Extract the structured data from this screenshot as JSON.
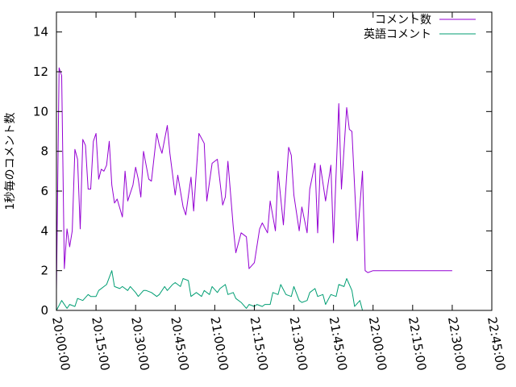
{
  "chart_data": {
    "type": "line",
    "ylabel": "1秒毎のコメント数",
    "xlabel": "",
    "title": "",
    "ylim": [
      0,
      15
    ],
    "y_ticks": [
      "0",
      "2",
      "4",
      "6",
      "8",
      "10",
      "12",
      "14"
    ],
    "y_tick_values": [
      0,
      2,
      4,
      6,
      8,
      10,
      12,
      14
    ],
    "xlim": [
      "20:00:00",
      "22:45:00"
    ],
    "x_ticks": [
      "20:00:00",
      "20:15:00",
      "20:30:00",
      "20:45:00",
      "21:00:00",
      "21:15:00",
      "21:30:00",
      "21:45:00",
      "22:00:00",
      "22:15:00",
      "22:30:00",
      "22:45:00"
    ],
    "grid": false,
    "legend_position": "top-right",
    "series": [
      {
        "name": "コメント数",
        "color": "#9400d3",
        "x": [
          "20:00:00",
          "20:01:00",
          "20:02:00",
          "20:03:00",
          "20:04:00",
          "20:05:00",
          "20:06:00",
          "20:07:00",
          "20:08:00",
          "20:09:00",
          "20:10:00",
          "20:11:00",
          "20:12:00",
          "20:13:00",
          "20:14:00",
          "20:15:00",
          "20:16:00",
          "20:17:00",
          "20:18:00",
          "20:19:00",
          "20:20:00",
          "20:21:00",
          "20:22:00",
          "20:23:00",
          "20:25:00",
          "20:26:00",
          "20:27:00",
          "20:29:00",
          "20:30:00",
          "20:31:00",
          "20:32:00",
          "20:33:00",
          "20:35:00",
          "20:36:00",
          "20:38:00",
          "20:39:00",
          "20:40:00",
          "20:42:00",
          "20:43:00",
          "20:45:00",
          "20:46:00",
          "20:48:00",
          "20:49:00",
          "20:51:00",
          "20:52:00",
          "20:54:00",
          "20:56:00",
          "20:57:00",
          "20:59:00",
          "21:01:00",
          "21:03:00",
          "21:04:00",
          "21:05:00",
          "21:07:00",
          "21:08:00",
          "21:10:00",
          "21:12:00",
          "21:13:00",
          "21:15:00",
          "21:17:00",
          "21:18:00",
          "21:20:00",
          "21:21:00",
          "21:23:00",
          "21:24:00",
          "21:26:00",
          "21:28:00",
          "21:29:00",
          "21:30:00",
          "21:32:00",
          "21:33:00",
          "21:35:00",
          "21:36:00",
          "21:38:00",
          "21:39:00",
          "21:40:00",
          "21:42:00",
          "21:44:00",
          "21:45:00",
          "21:47:00",
          "21:48:00",
          "21:50:00",
          "21:51:00",
          "21:52:00",
          "21:54:00",
          "21:56:00",
          "21:57:00",
          "21:58:00",
          "22:00:00",
          "22:01:00",
          "22:03:00",
          "22:04:00",
          "22:06:00",
          "22:07:00",
          "22:09:00",
          "22:10:00",
          "22:12:00",
          "22:13:00",
          "22:15:00",
          "22:16:00",
          "22:18:00",
          "22:19:00",
          "22:21:00",
          "22:22:00",
          "22:24:00",
          "22:26:00",
          "22:27:00",
          "22:28:00",
          "22:29:00",
          "22:30:00"
        ],
        "values": [
          1.0,
          12.2,
          11.8,
          2.1,
          4.1,
          3.2,
          4.0,
          8.1,
          7.6,
          4.1,
          8.6,
          8.3,
          6.1,
          6.1,
          8.5,
          8.9,
          6.6,
          7.1,
          7.0,
          7.3,
          8.5,
          6.3,
          5.4,
          5.6,
          4.7,
          7.0,
          5.5,
          6.3,
          7.2,
          6.6,
          5.7,
          8.0,
          6.6,
          6.5,
          8.9,
          8.3,
          7.9,
          9.3,
          7.9,
          5.8,
          6.8,
          5.2,
          4.8,
          6.7,
          5.0,
          8.9,
          8.4,
          5.5,
          7.4,
          7.6,
          5.3,
          5.7,
          7.5,
          4.2,
          2.9,
          3.9,
          3.7,
          2.1,
          2.4,
          4.1,
          4.4,
          3.9,
          5.5,
          4.0,
          7.0,
          4.3,
          8.2,
          7.8,
          5.8,
          4.0,
          5.2,
          3.9,
          6.1,
          7.4,
          3.9,
          7.3,
          5.5,
          7.3,
          3.4,
          10.4,
          6.1,
          10.2,
          9.1,
          9.0,
          3.5,
          7.0,
          2.0,
          1.9,
          2.0,
          2.0,
          2.0,
          2.0,
          2.0,
          2.0,
          2.0,
          2.0,
          2.0,
          2.0,
          2.0,
          2.0,
          2.0,
          2.0,
          2.0,
          2.0,
          2.0,
          2.0,
          2.0,
          2.0,
          2.0,
          2.0
        ]
      },
      {
        "name": "英語コメント",
        "color": "#009e73",
        "x": [
          "20:00:00",
          "20:02:00",
          "20:04:00",
          "20:05:00",
          "20:07:00",
          "20:08:00",
          "20:10:00",
          "20:12:00",
          "20:13:00",
          "20:15:00",
          "20:16:00",
          "20:18:00",
          "20:19:00",
          "20:21:00",
          "20:22:00",
          "20:24:00",
          "20:25:00",
          "20:27:00",
          "20:28:00",
          "20:30:00",
          "20:31:00",
          "20:33:00",
          "20:34:00",
          "20:36:00",
          "20:38:00",
          "20:39:00",
          "20:41:00",
          "20:42:00",
          "20:44:00",
          "20:45:00",
          "20:47:00",
          "20:48:00",
          "20:50:00",
          "20:51:00",
          "20:53:00",
          "20:55:00",
          "20:56:00",
          "20:58:00",
          "20:59:00",
          "21:01:00",
          "21:02:00",
          "21:04:00",
          "21:05:00",
          "21:07:00",
          "21:08:00",
          "21:10:00",
          "21:12:00",
          "21:13:00",
          "21:15:00",
          "21:16:00",
          "21:18:00",
          "21:19:00",
          "21:21:00",
          "21:22:00",
          "21:24:00",
          "21:25:00",
          "21:27:00",
          "21:29:00",
          "21:30:00",
          "21:32:00",
          "21:33:00",
          "21:35:00",
          "21:36:00",
          "21:38:00",
          "21:39:00",
          "21:41:00",
          "21:42:00",
          "21:44:00",
          "21:46:00",
          "21:47:00",
          "21:49:00",
          "21:50:00",
          "21:52:00",
          "21:53:00",
          "21:55:00",
          "21:56:00",
          "21:58:00",
          "21:59:00",
          "22:01:00",
          "22:03:00",
          "22:04:00",
          "22:06:00",
          "22:07:00",
          "22:09:00",
          "22:10:00",
          "22:12:00",
          "22:13:00",
          "22:15:00",
          "22:16:00",
          "22:18:00",
          "22:20:00",
          "22:21:00",
          "22:23:00",
          "22:24:00",
          "22:26:00",
          "22:27:00",
          "22:29:00",
          "22:30:00"
        ],
        "values": [
          0.0,
          0.5,
          0.1,
          0.3,
          0.2,
          0.6,
          0.5,
          0.8,
          0.7,
          0.7,
          1.0,
          1.2,
          1.3,
          2.0,
          1.2,
          1.1,
          1.2,
          1.0,
          1.2,
          0.9,
          0.7,
          1.0,
          1.0,
          0.9,
          0.7,
          0.8,
          1.2,
          1.0,
          1.3,
          1.4,
          1.2,
          1.6,
          1.5,
          0.7,
          0.9,
          0.7,
          1.0,
          0.8,
          1.2,
          0.9,
          1.1,
          1.3,
          0.8,
          0.9,
          0.6,
          0.4,
          0.1,
          0.3,
          0.2,
          0.3,
          0.2,
          0.3,
          0.3,
          0.9,
          0.8,
          1.3,
          0.8,
          0.7,
          1.2,
          0.5,
          0.4,
          0.5,
          0.9,
          1.1,
          0.7,
          0.8,
          0.3,
          0.8,
          0.7,
          1.3,
          1.2,
          1.6,
          1.0,
          0.2,
          0.5,
          0.0,
          0.0,
          0.0,
          0.0,
          0.0,
          0.0,
          0.0,
          0.0,
          0.0,
          0.0,
          0.0,
          0.0,
          0.0,
          0.0,
          0.0,
          0.0,
          0.0,
          0.0,
          0.0,
          0.0,
          0.0,
          0.0,
          0.0
        ]
      }
    ]
  }
}
